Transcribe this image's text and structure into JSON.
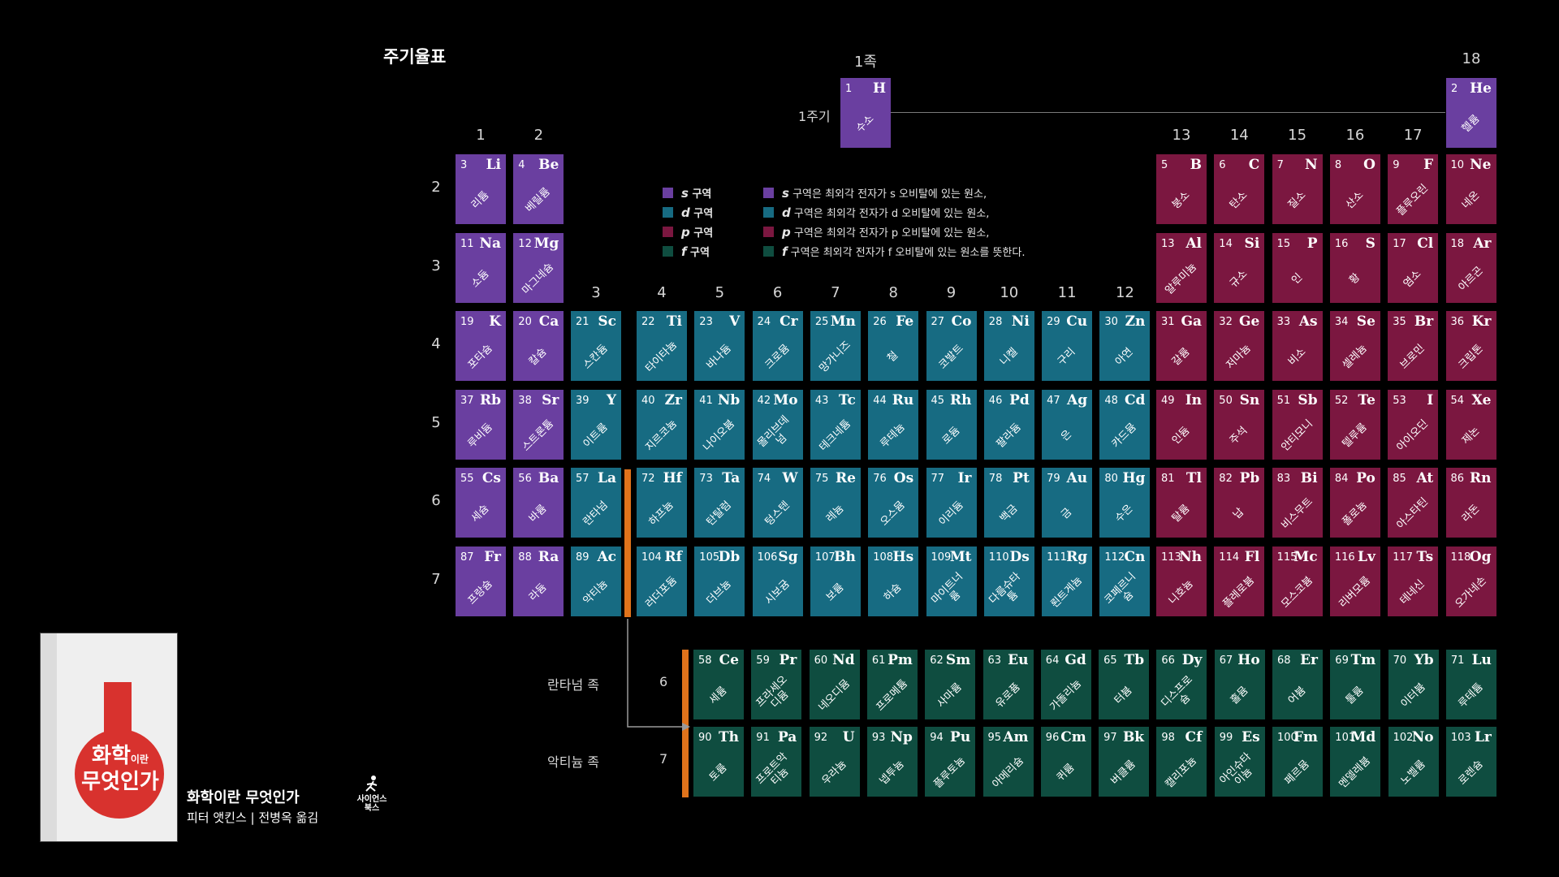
{
  "title": "주기율표",
  "group_labels": [
    "1",
    "2",
    "3",
    "4",
    "5",
    "6",
    "7",
    "8",
    "9",
    "10",
    "11",
    "12",
    "13",
    "14",
    "15",
    "16",
    "17",
    "18"
  ],
  "period_labels": [
    "2",
    "3",
    "4",
    "5",
    "6",
    "7"
  ],
  "top_group_label": "1족",
  "period1_label": "1주기",
  "lanthanide_label": "란타넘 족",
  "actinide_label": "악티늄 족",
  "lanthanide_period": "6",
  "actinide_period": "7",
  "legend": [
    {
      "block": "s",
      "short": "구역",
      "desc": "구역은 최외각 전자가 s 오비탈에 있는 원소,",
      "color": "#6a3fa0"
    },
    {
      "block": "d",
      "short": "구역",
      "desc": "구역은 최외각 전자가 d 오비탈에 있는 원소,",
      "color": "#176b82"
    },
    {
      "block": "p",
      "short": "구역",
      "desc": "구역은 최외각 전자가 p 오비탈에 있는 원소,",
      "color": "#7b1740"
    },
    {
      "block": "f",
      "short": "구역",
      "desc": "구역은 최외각 전자가 f 오비탈에 있는 원소를 뜻한다.",
      "color": "#0f4d40"
    }
  ],
  "elements": [
    {
      "n": "1",
      "sym": "H",
      "name": "수소",
      "b": "s",
      "g": 1,
      "p": 1
    },
    {
      "n": "2",
      "sym": "He",
      "name": "헬륨",
      "b": "s",
      "g": 18,
      "p": 1
    },
    {
      "n": "3",
      "sym": "Li",
      "name": "리튬",
      "b": "s",
      "g": 1,
      "p": 2
    },
    {
      "n": "4",
      "sym": "Be",
      "name": "베릴륨",
      "b": "s",
      "g": 2,
      "p": 2
    },
    {
      "n": "5",
      "sym": "B",
      "name": "붕소",
      "b": "p",
      "g": 13,
      "p": 2
    },
    {
      "n": "6",
      "sym": "C",
      "name": "탄소",
      "b": "p",
      "g": 14,
      "p": 2
    },
    {
      "n": "7",
      "sym": "N",
      "name": "질소",
      "b": "p",
      "g": 15,
      "p": 2
    },
    {
      "n": "8",
      "sym": "O",
      "name": "산소",
      "b": "p",
      "g": 16,
      "p": 2
    },
    {
      "n": "9",
      "sym": "F",
      "name": "플루오린",
      "b": "p",
      "g": 17,
      "p": 2
    },
    {
      "n": "10",
      "sym": "Ne",
      "name": "네온",
      "b": "p",
      "g": 18,
      "p": 2
    },
    {
      "n": "11",
      "sym": "Na",
      "name": "소듐",
      "b": "s",
      "g": 1,
      "p": 3
    },
    {
      "n": "12",
      "sym": "Mg",
      "name": "마그네슘",
      "b": "s",
      "g": 2,
      "p": 3
    },
    {
      "n": "13",
      "sym": "Al",
      "name": "알루미늄",
      "b": "p",
      "g": 13,
      "p": 3
    },
    {
      "n": "14",
      "sym": "Si",
      "name": "규소",
      "b": "p",
      "g": 14,
      "p": 3
    },
    {
      "n": "15",
      "sym": "P",
      "name": "인",
      "b": "p",
      "g": 15,
      "p": 3
    },
    {
      "n": "16",
      "sym": "S",
      "name": "황",
      "b": "p",
      "g": 16,
      "p": 3
    },
    {
      "n": "17",
      "sym": "Cl",
      "name": "염소",
      "b": "p",
      "g": 17,
      "p": 3
    },
    {
      "n": "18",
      "sym": "Ar",
      "name": "아르곤",
      "b": "p",
      "g": 18,
      "p": 3
    },
    {
      "n": "19",
      "sym": "K",
      "name": "포타슘",
      "b": "s",
      "g": 1,
      "p": 4
    },
    {
      "n": "20",
      "sym": "Ca",
      "name": "칼슘",
      "b": "s",
      "g": 2,
      "p": 4
    },
    {
      "n": "21",
      "sym": "Sc",
      "name": "스칸듐",
      "b": "d",
      "g": 3,
      "p": 4
    },
    {
      "n": "22",
      "sym": "Ti",
      "name": "타이타늄",
      "b": "d",
      "g": 4,
      "p": 4
    },
    {
      "n": "23",
      "sym": "V",
      "name": "바나듐",
      "b": "d",
      "g": 5,
      "p": 4
    },
    {
      "n": "24",
      "sym": "Cr",
      "name": "크로뮴",
      "b": "d",
      "g": 6,
      "p": 4
    },
    {
      "n": "25",
      "sym": "Mn",
      "name": "망가니즈",
      "b": "d",
      "g": 7,
      "p": 4
    },
    {
      "n": "26",
      "sym": "Fe",
      "name": "철",
      "b": "d",
      "g": 8,
      "p": 4
    },
    {
      "n": "27",
      "sym": "Co",
      "name": "코발트",
      "b": "d",
      "g": 9,
      "p": 4
    },
    {
      "n": "28",
      "sym": "Ni",
      "name": "니켈",
      "b": "d",
      "g": 10,
      "p": 4
    },
    {
      "n": "29",
      "sym": "Cu",
      "name": "구리",
      "b": "d",
      "g": 11,
      "p": 4
    },
    {
      "n": "30",
      "sym": "Zn",
      "name": "아연",
      "b": "d",
      "g": 12,
      "p": 4
    },
    {
      "n": "31",
      "sym": "Ga",
      "name": "갈륨",
      "b": "p",
      "g": 13,
      "p": 4
    },
    {
      "n": "32",
      "sym": "Ge",
      "name": "저마늄",
      "b": "p",
      "g": 14,
      "p": 4
    },
    {
      "n": "33",
      "sym": "As",
      "name": "비소",
      "b": "p",
      "g": 15,
      "p": 4
    },
    {
      "n": "34",
      "sym": "Se",
      "name": "셀레늄",
      "b": "p",
      "g": 16,
      "p": 4
    },
    {
      "n": "35",
      "sym": "Br",
      "name": "브로민",
      "b": "p",
      "g": 17,
      "p": 4
    },
    {
      "n": "36",
      "sym": "Kr",
      "name": "크립톤",
      "b": "p",
      "g": 18,
      "p": 4
    },
    {
      "n": "37",
      "sym": "Rb",
      "name": "루비듐",
      "b": "s",
      "g": 1,
      "p": 5
    },
    {
      "n": "38",
      "sym": "Sr",
      "name": "스트론튬",
      "b": "s",
      "g": 2,
      "p": 5
    },
    {
      "n": "39",
      "sym": "Y",
      "name": "이트륨",
      "b": "d",
      "g": 3,
      "p": 5
    },
    {
      "n": "40",
      "sym": "Zr",
      "name": "지르코늄",
      "b": "d",
      "g": 4,
      "p": 5
    },
    {
      "n": "41",
      "sym": "Nb",
      "name": "나이오븀",
      "b": "d",
      "g": 5,
      "p": 5
    },
    {
      "n": "42",
      "sym": "Mo",
      "name": "몰리브데넘",
      "b": "d",
      "g": 6,
      "p": 5
    },
    {
      "n": "43",
      "sym": "Tc",
      "name": "테크네튬",
      "b": "d",
      "g": 7,
      "p": 5
    },
    {
      "n": "44",
      "sym": "Ru",
      "name": "루테늄",
      "b": "d",
      "g": 8,
      "p": 5
    },
    {
      "n": "45",
      "sym": "Rh",
      "name": "로듐",
      "b": "d",
      "g": 9,
      "p": 5
    },
    {
      "n": "46",
      "sym": "Pd",
      "name": "팔라듐",
      "b": "d",
      "g": 10,
      "p": 5
    },
    {
      "n": "47",
      "sym": "Ag",
      "name": "은",
      "b": "d",
      "g": 11,
      "p": 5
    },
    {
      "n": "48",
      "sym": "Cd",
      "name": "카드뮴",
      "b": "d",
      "g": 12,
      "p": 5
    },
    {
      "n": "49",
      "sym": "In",
      "name": "인듐",
      "b": "p",
      "g": 13,
      "p": 5
    },
    {
      "n": "50",
      "sym": "Sn",
      "name": "주석",
      "b": "p",
      "g": 14,
      "p": 5
    },
    {
      "n": "51",
      "sym": "Sb",
      "name": "안티모니",
      "b": "p",
      "g": 15,
      "p": 5
    },
    {
      "n": "52",
      "sym": "Te",
      "name": "텔루륨",
      "b": "p",
      "g": 16,
      "p": 5
    },
    {
      "n": "53",
      "sym": "I",
      "name": "아이오딘",
      "b": "p",
      "g": 17,
      "p": 5
    },
    {
      "n": "54",
      "sym": "Xe",
      "name": "제논",
      "b": "p",
      "g": 18,
      "p": 5
    },
    {
      "n": "55",
      "sym": "Cs",
      "name": "세슘",
      "b": "s",
      "g": 1,
      "p": 6
    },
    {
      "n": "56",
      "sym": "Ba",
      "name": "바륨",
      "b": "s",
      "g": 2,
      "p": 6
    },
    {
      "n": "57",
      "sym": "La",
      "name": "란타넘",
      "b": "d",
      "g": 3,
      "p": 6
    },
    {
      "n": "72",
      "sym": "Hf",
      "name": "하프늄",
      "b": "d",
      "g": 4,
      "p": 6
    },
    {
      "n": "73",
      "sym": "Ta",
      "name": "탄탈럼",
      "b": "d",
      "g": 5,
      "p": 6
    },
    {
      "n": "74",
      "sym": "W",
      "name": "텅스텐",
      "b": "d",
      "g": 6,
      "p": 6
    },
    {
      "n": "75",
      "sym": "Re",
      "name": "레늄",
      "b": "d",
      "g": 7,
      "p": 6
    },
    {
      "n": "76",
      "sym": "Os",
      "name": "오스뮴",
      "b": "d",
      "g": 8,
      "p": 6
    },
    {
      "n": "77",
      "sym": "Ir",
      "name": "이리듐",
      "b": "d",
      "g": 9,
      "p": 6
    },
    {
      "n": "78",
      "sym": "Pt",
      "name": "백금",
      "b": "d",
      "g": 10,
      "p": 6
    },
    {
      "n": "79",
      "sym": "Au",
      "name": "금",
      "b": "d",
      "g": 11,
      "p": 6
    },
    {
      "n": "80",
      "sym": "Hg",
      "name": "수은",
      "b": "d",
      "g": 12,
      "p": 6
    },
    {
      "n": "81",
      "sym": "Tl",
      "name": "탈륨",
      "b": "p",
      "g": 13,
      "p": 6
    },
    {
      "n": "82",
      "sym": "Pb",
      "name": "납",
      "b": "p",
      "g": 14,
      "p": 6
    },
    {
      "n": "83",
      "sym": "Bi",
      "name": "비스무트",
      "b": "p",
      "g": 15,
      "p": 6
    },
    {
      "n": "84",
      "sym": "Po",
      "name": "폴로늄",
      "b": "p",
      "g": 16,
      "p": 6
    },
    {
      "n": "85",
      "sym": "At",
      "name": "아스타틴",
      "b": "p",
      "g": 17,
      "p": 6
    },
    {
      "n": "86",
      "sym": "Rn",
      "name": "라돈",
      "b": "p",
      "g": 18,
      "p": 6
    },
    {
      "n": "87",
      "sym": "Fr",
      "name": "프랑슘",
      "b": "s",
      "g": 1,
      "p": 7
    },
    {
      "n": "88",
      "sym": "Ra",
      "name": "라듐",
      "b": "s",
      "g": 2,
      "p": 7
    },
    {
      "n": "89",
      "sym": "Ac",
      "name": "악티늄",
      "b": "d",
      "g": 3,
      "p": 7
    },
    {
      "n": "104",
      "sym": "Rf",
      "name": "러더포듐",
      "b": "d",
      "g": 4,
      "p": 7
    },
    {
      "n": "105",
      "sym": "Db",
      "name": "더브늄",
      "b": "d",
      "g": 5,
      "p": 7
    },
    {
      "n": "106",
      "sym": "Sg",
      "name": "시보귬",
      "b": "d",
      "g": 6,
      "p": 7
    },
    {
      "n": "107",
      "sym": "Bh",
      "name": "보륨",
      "b": "d",
      "g": 7,
      "p": 7
    },
    {
      "n": "108",
      "sym": "Hs",
      "name": "하슘",
      "b": "d",
      "g": 8,
      "p": 7
    },
    {
      "n": "109",
      "sym": "Mt",
      "name": "마이트너륨",
      "b": "d",
      "g": 9,
      "p": 7
    },
    {
      "n": "110",
      "sym": "Ds",
      "name": "다름슈타튬",
      "b": "d",
      "g": 10,
      "p": 7
    },
    {
      "n": "111",
      "sym": "Rg",
      "name": "뢴트게늄",
      "b": "d",
      "g": 11,
      "p": 7
    },
    {
      "n": "112",
      "sym": "Cn",
      "name": "코페르니슘",
      "b": "d",
      "g": 12,
      "p": 7
    },
    {
      "n": "113",
      "sym": "Nh",
      "name": "니호늄",
      "b": "p",
      "g": 13,
      "p": 7
    },
    {
      "n": "114",
      "sym": "Fl",
      "name": "플레로븀",
      "b": "p",
      "g": 14,
      "p": 7
    },
    {
      "n": "115",
      "sym": "Mc",
      "name": "모스코븀",
      "b": "p",
      "g": 15,
      "p": 7
    },
    {
      "n": "116",
      "sym": "Lv",
      "name": "리버모륨",
      "b": "p",
      "g": 16,
      "p": 7
    },
    {
      "n": "117",
      "sym": "Ts",
      "name": "테네신",
      "b": "p",
      "g": 17,
      "p": 7
    },
    {
      "n": "118",
      "sym": "Og",
      "name": "오가네손",
      "b": "p",
      "g": 18,
      "p": 7
    }
  ],
  "f_elements": [
    {
      "n": "58",
      "sym": "Ce",
      "name": "세륨",
      "row": "lan",
      "col": 0
    },
    {
      "n": "59",
      "sym": "Pr",
      "name": "프라세오디뮴",
      "row": "lan",
      "col": 1
    },
    {
      "n": "60",
      "sym": "Nd",
      "name": "네오디뮴",
      "row": "lan",
      "col": 2
    },
    {
      "n": "61",
      "sym": "Pm",
      "name": "프로메튬",
      "row": "lan",
      "col": 3
    },
    {
      "n": "62",
      "sym": "Sm",
      "name": "사마륨",
      "row": "lan",
      "col": 4
    },
    {
      "n": "63",
      "sym": "Eu",
      "name": "유로퓸",
      "row": "lan",
      "col": 5
    },
    {
      "n": "64",
      "sym": "Gd",
      "name": "가돌리늄",
      "row": "lan",
      "col": 6
    },
    {
      "n": "65",
      "sym": "Tb",
      "name": "터븀",
      "row": "lan",
      "col": 7
    },
    {
      "n": "66",
      "sym": "Dy",
      "name": "디스프로슘",
      "row": "lan",
      "col": 8
    },
    {
      "n": "67",
      "sym": "Ho",
      "name": "홀뮴",
      "row": "lan",
      "col": 9
    },
    {
      "n": "68",
      "sym": "Er",
      "name": "어븀",
      "row": "lan",
      "col": 10
    },
    {
      "n": "69",
      "sym": "Tm",
      "name": "툴륨",
      "row": "lan",
      "col": 11
    },
    {
      "n": "70",
      "sym": "Yb",
      "name": "이터븀",
      "row": "lan",
      "col": 12
    },
    {
      "n": "71",
      "sym": "Lu",
      "name": "루테튬",
      "row": "lan",
      "col": 13
    },
    {
      "n": "90",
      "sym": "Th",
      "name": "토륨",
      "row": "act",
      "col": 0
    },
    {
      "n": "91",
      "sym": "Pa",
      "name": "프로트악티늄",
      "row": "act",
      "col": 1
    },
    {
      "n": "92",
      "sym": "U",
      "name": "우라늄",
      "row": "act",
      "col": 2
    },
    {
      "n": "93",
      "sym": "Np",
      "name": "넵투늄",
      "row": "act",
      "col": 3
    },
    {
      "n": "94",
      "sym": "Pu",
      "name": "플루토늄",
      "row": "act",
      "col": 4
    },
    {
      "n": "95",
      "sym": "Am",
      "name": "아메리슘",
      "row": "act",
      "col": 5
    },
    {
      "n": "96",
      "sym": "Cm",
      "name": "퀴륨",
      "row": "act",
      "col": 6
    },
    {
      "n": "97",
      "sym": "Bk",
      "name": "버클륨",
      "row": "act",
      "col": 7
    },
    {
      "n": "98",
      "sym": "Cf",
      "name": "캘리포늄",
      "row": "act",
      "col": 8
    },
    {
      "n": "99",
      "sym": "Es",
      "name": "아인슈타이늄",
      "row": "act",
      "col": 9
    },
    {
      "n": "100",
      "sym": "Fm",
      "name": "페르뮴",
      "row": "act",
      "col": 10
    },
    {
      "n": "101",
      "sym": "Md",
      "name": "멘델레븀",
      "row": "act",
      "col": 11
    },
    {
      "n": "102",
      "sym": "No",
      "name": "노벨륨",
      "row": "act",
      "col": 12
    },
    {
      "n": "103",
      "sym": "Lr",
      "name": "로렌슘",
      "row": "act",
      "col": 13
    }
  ],
  "book": {
    "cover_title_1": "화학",
    "cover_title_small": "이란",
    "cover_title_2": "무엇인가",
    "title": "화학이란 무엇인가",
    "author": "피터 앳킨스 | 전병옥 옮김",
    "publisher": "사이언스북스"
  },
  "colors": {
    "s": "#6a3fa0",
    "d": "#176b82",
    "p": "#7b1740",
    "f": "#0f4d40",
    "accent": "#e0731b"
  }
}
